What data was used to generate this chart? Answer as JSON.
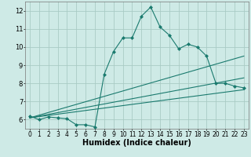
{
  "xlabel": "Humidex (Indice chaleur)",
  "xlim": [
    -0.5,
    23.5
  ],
  "ylim": [
    5.5,
    12.5
  ],
  "yticks": [
    6,
    7,
    8,
    9,
    10,
    11,
    12
  ],
  "xticks": [
    0,
    1,
    2,
    3,
    4,
    5,
    6,
    7,
    8,
    9,
    10,
    11,
    12,
    13,
    14,
    15,
    16,
    17,
    18,
    19,
    20,
    21,
    22,
    23
  ],
  "bg_color": "#ceeae6",
  "grid_color": "#aacbc5",
  "line_color": "#1a7a6e",
  "line1_x": [
    0,
    1,
    2,
    3,
    4,
    5,
    6,
    7,
    8,
    9,
    10,
    11,
    12,
    13,
    14,
    15,
    16,
    17,
    18,
    19,
    20,
    21,
    22,
    23
  ],
  "line1_y": [
    6.2,
    6.0,
    6.15,
    6.1,
    6.05,
    5.72,
    5.72,
    5.6,
    8.5,
    9.75,
    10.5,
    10.5,
    11.7,
    12.2,
    11.1,
    10.65,
    9.9,
    10.15,
    10.0,
    9.5,
    8.0,
    8.0,
    7.85,
    7.75
  ],
  "line2_x": [
    0,
    23
  ],
  "line2_y": [
    6.1,
    9.5
  ],
  "line3_x": [
    0,
    23
  ],
  "line3_y": [
    6.1,
    8.3
  ],
  "line4_x": [
    0,
    23
  ],
  "line4_y": [
    6.1,
    7.65
  ]
}
